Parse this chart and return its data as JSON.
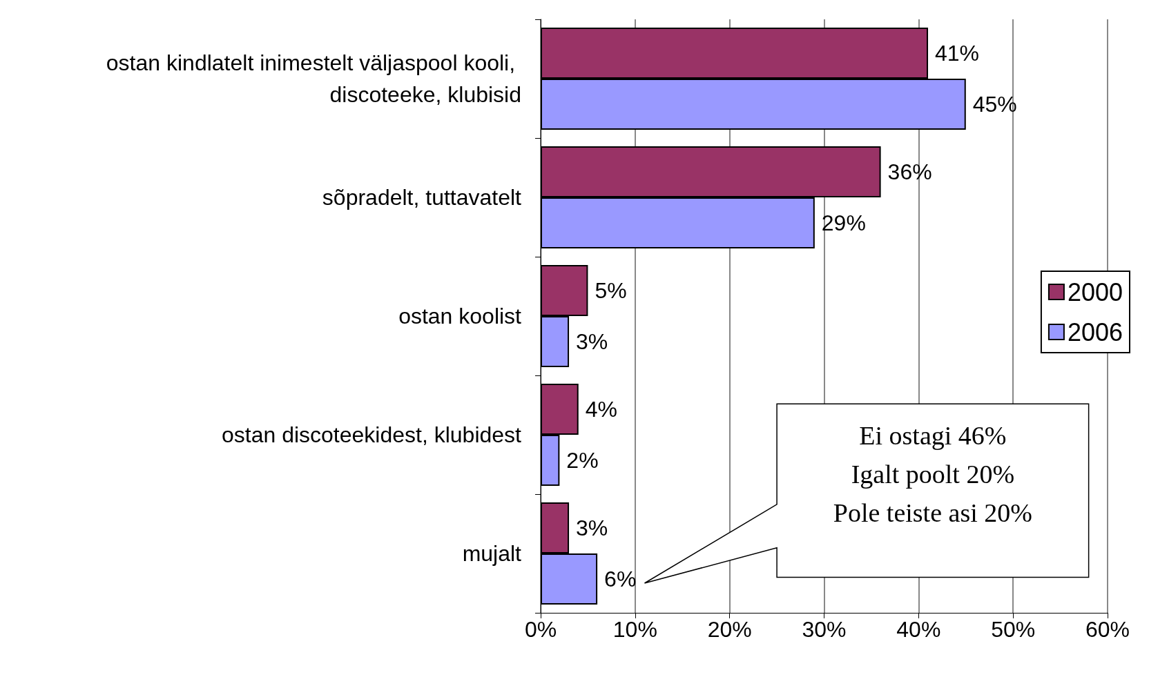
{
  "chart_data": {
    "type": "bar",
    "orientation": "horizontal",
    "categories": [
      "ostan kindlatelt inimestelt väljaspool kooli, discoteeke, klubisid",
      "sõpradelt, tuttavatelt",
      "ostan koolist",
      "ostan discoteekidest, klubidest",
      "mujalt"
    ],
    "series": [
      {
        "name": "2000",
        "color": "#993366",
        "values": [
          41,
          36,
          5,
          4,
          3
        ],
        "value_labels": [
          "41%",
          "36%",
          "5%",
          "4%",
          "3%"
        ]
      },
      {
        "name": "2006",
        "color": "#9999ff",
        "values": [
          45,
          29,
          3,
          2,
          6
        ],
        "value_labels": [
          "45%",
          "29%",
          "3%",
          "2%",
          "6%"
        ]
      }
    ],
    "xlim": [
      0,
      60
    ],
    "xticks": [
      {
        "value": 0,
        "label": "0%"
      },
      {
        "value": 10,
        "label": "10%"
      },
      {
        "value": 20,
        "label": "20%"
      },
      {
        "value": 30,
        "label": "30%"
      },
      {
        "value": 40,
        "label": "40%"
      },
      {
        "value": 50,
        "label": "50%"
      },
      {
        "value": 60,
        "label": "60%"
      }
    ],
    "grid": "x",
    "legend": "right",
    "annotations": [
      "Ei ostagi 46%",
      "Igalt poolt 20%",
      "Pole teiste asi 20%"
    ]
  }
}
